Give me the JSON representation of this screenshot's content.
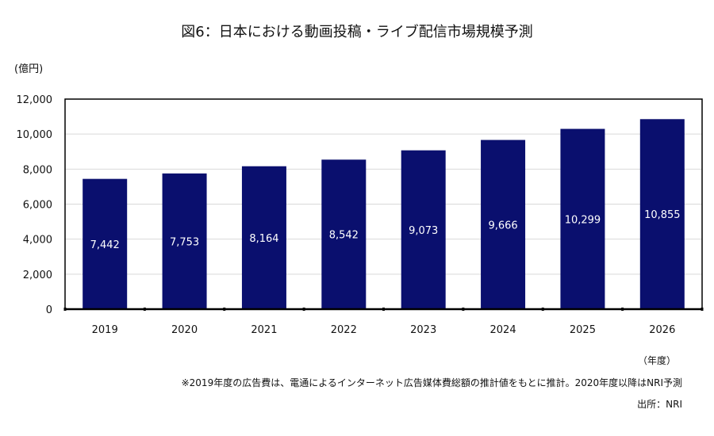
{
  "chart_data": {
    "type": "bar",
    "title": "図6：日本における動画投稿・ライブ配信市場規模予測",
    "ylabel": "(億円)",
    "xlabel": "",
    "x_unit_label": "（年度）",
    "categories": [
      "2019",
      "2020",
      "2021",
      "2022",
      "2023",
      "2024",
      "2025",
      "2026"
    ],
    "values": [
      7442,
      7753,
      8164,
      8542,
      9073,
      9666,
      10299,
      10855
    ],
    "data_labels": [
      "7,442",
      "7,753",
      "8,164",
      "8,542",
      "9,073",
      "9,666",
      "10,299",
      "10,855"
    ],
    "ylim": [
      0,
      12000
    ],
    "yticks": [
      "0",
      "2,000",
      "4,000",
      "6,000",
      "8,000",
      "10,000",
      "12,000"
    ],
    "grid": true,
    "bar_color": "#0a0f6e",
    "label_color": "#ffffff"
  },
  "footnote": "※2019年度の広告費は、電通によるインターネット広告媒体費総額の推計値をもとに推計。2020年度以降はNRI予測",
  "source": "出所：NRI"
}
